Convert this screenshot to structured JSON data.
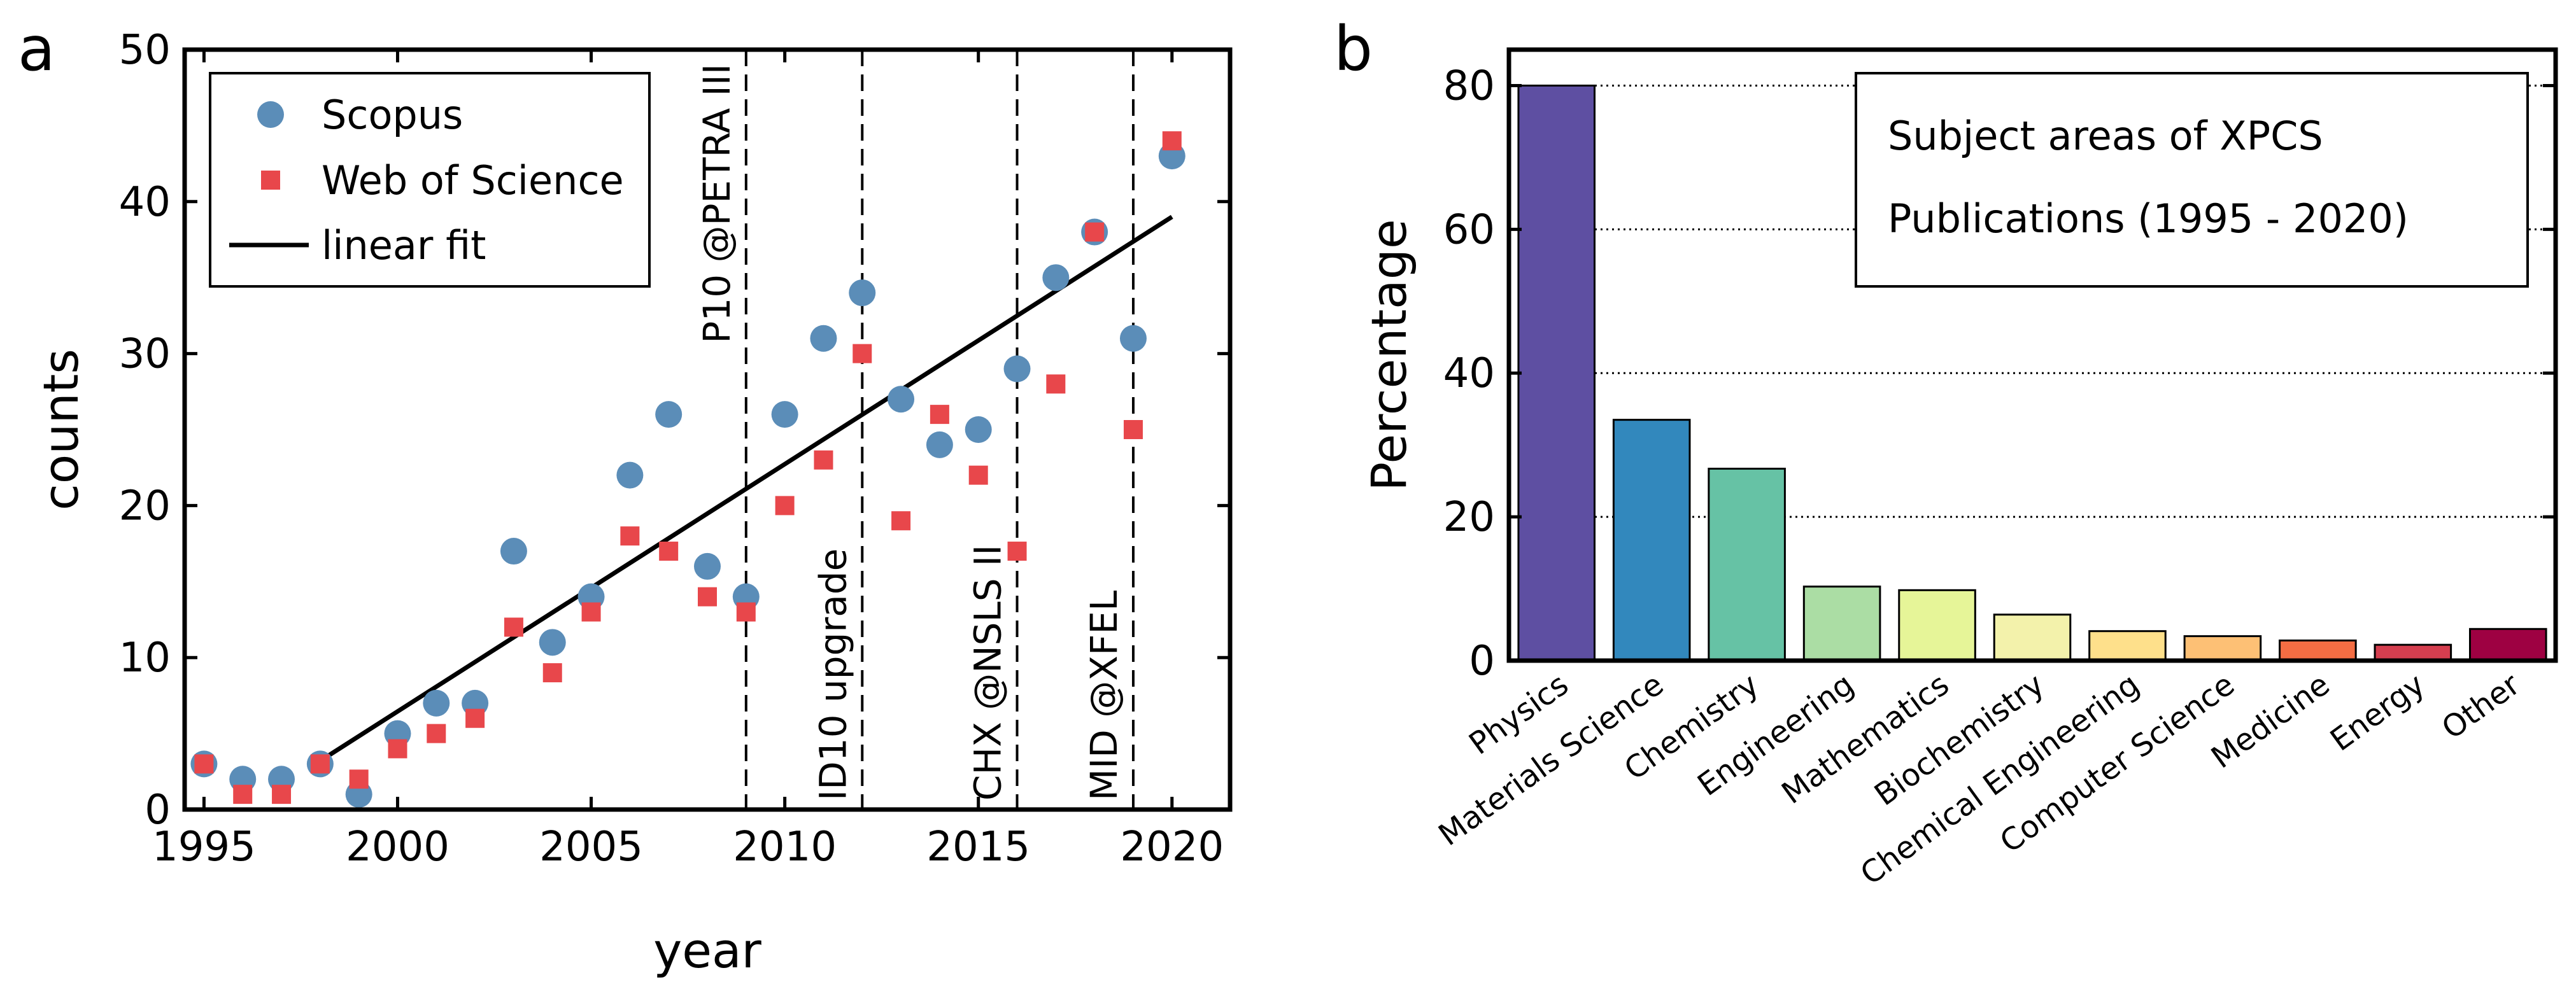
{
  "chart_data": [
    {
      "type": "scatter",
      "panel_label": "a",
      "xlabel": "year",
      "ylabel": "counts",
      "xlim": [
        1994.5,
        2021.5
      ],
      "ylim": [
        0,
        50
      ],
      "xticks": [
        1995,
        2000,
        2005,
        2010,
        2015,
        2020
      ],
      "yticks": [
        0,
        10,
        20,
        30,
        40,
        50
      ],
      "legend_position": "top-left",
      "series": [
        {
          "name": "Scopus",
          "color": "#5b8db8",
          "marker": "circle",
          "x": [
            1995,
            1996,
            1997,
            1998,
            1999,
            2000,
            2001,
            2002,
            2003,
            2004,
            2005,
            2006,
            2007,
            2008,
            2009,
            2010,
            2011,
            2012,
            2013,
            2014,
            2015,
            2016,
            2017,
            2018,
            2019,
            2020
          ],
          "y": [
            3,
            2,
            2,
            3,
            1,
            5,
            7,
            7,
            17,
            11,
            14,
            22,
            26,
            16,
            14,
            26,
            31,
            34,
            27,
            24,
            25,
            29,
            35,
            38,
            31,
            43
          ]
        },
        {
          "name": "Web of Science",
          "color": "#e8474b",
          "marker": "square",
          "x": [
            1995,
            1996,
            1997,
            1998,
            1999,
            2000,
            2001,
            2002,
            2003,
            2004,
            2005,
            2006,
            2007,
            2008,
            2009,
            2010,
            2011,
            2012,
            2013,
            2014,
            2015,
            2016,
            2017,
            2018,
            2019,
            2020
          ],
          "y": [
            3,
            1,
            1,
            3,
            2,
            4,
            5,
            6,
            12,
            9,
            13,
            18,
            17,
            14,
            13,
            20,
            23,
            30,
            19,
            26,
            22,
            17,
            28,
            38,
            25,
            44
          ]
        },
        {
          "name": "linear fit",
          "color": "#000000",
          "type": "line",
          "x": [
            1998,
            2020
          ],
          "y": [
            3.2,
            39
          ]
        }
      ],
      "annotations": [
        {
          "x": 2009,
          "text": "P10 @PETRA III",
          "position": "top"
        },
        {
          "x": 2012,
          "text": "ID10 upgrade",
          "position": "bottom"
        },
        {
          "x": 2016,
          "text": "CHX @NSLS II",
          "position": "bottom"
        },
        {
          "x": 2019,
          "text": "MID @XFEL",
          "position": "bottom"
        }
      ]
    },
    {
      "type": "bar",
      "panel_label": "b",
      "title_lines": [
        "Subject areas of XPCS",
        "Publications (1995 - 2020)"
      ],
      "ylabel": "Percentage",
      "ylim": [
        0,
        85
      ],
      "yticks": [
        0,
        20,
        40,
        60,
        80
      ],
      "grid": true,
      "categories": [
        "Physics",
        "Materials Science",
        "Chemistry",
        "Engineering",
        "Mathematics",
        "Biochemistry",
        "Chemical Engineering",
        "Computer Science",
        "Medicine",
        "Energy",
        "Other"
      ],
      "values": [
        80,
        33.5,
        26.7,
        10.3,
        9.8,
        6.4,
        4.1,
        3.4,
        2.8,
        2.2,
        4.4
      ],
      "colors": [
        "#5e4fa2",
        "#3288bd",
        "#66c2a5",
        "#abdda4",
        "#e6f598",
        "#f3f2ab",
        "#fee08b",
        "#fdc075",
        "#f46d43",
        "#d53e4f",
        "#9e0142"
      ]
    }
  ]
}
